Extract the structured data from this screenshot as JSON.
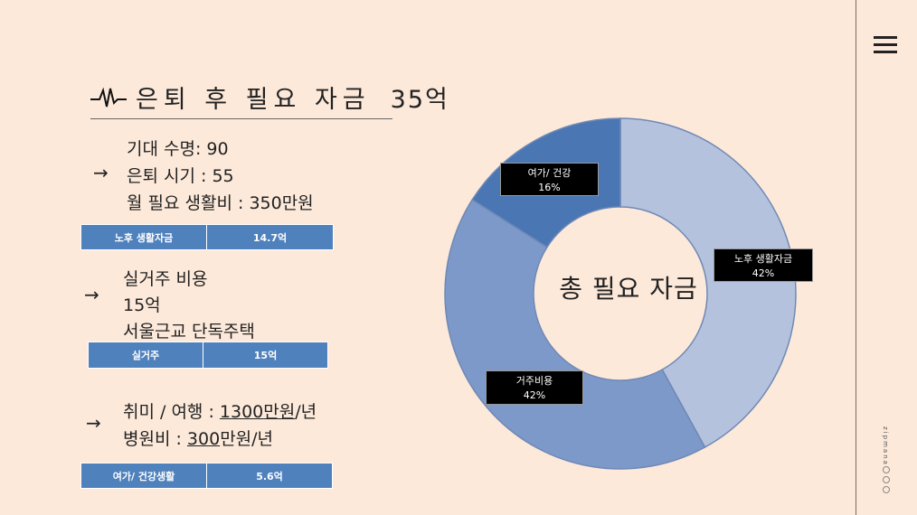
{
  "header": {
    "title": "은퇴 후 필요 자금",
    "amount": "35억"
  },
  "menu_icon": "hamburger-menu-icon",
  "brand": "zipmana",
  "section1": {
    "lines": [
      "기대 수명: 90",
      "은퇴 시기 : 55",
      "월 필요 생활비 : 350만원"
    ],
    "band": {
      "label": "노후 생활자금",
      "value": "14.7억"
    }
  },
  "section2": {
    "lines": [
      "실거주 비용",
      "15억",
      "서울근교 단독주택"
    ],
    "band": {
      "label": "실거주",
      "value": "15억"
    }
  },
  "section3": {
    "line1": {
      "prefix": "취미 / 여행 : ",
      "amount": "1300",
      "mid": "만원",
      "sep": "/",
      "suffix": "년"
    },
    "line2": {
      "prefix": "병원비 : ",
      "amount": "300",
      "suffix": "만원/년"
    },
    "band": {
      "label": "여가/ 건강생활",
      "value": "5.6억"
    }
  },
  "arrow_glyph": "→",
  "chart_data": {
    "type": "pie",
    "subtype": "donut",
    "center_label": "총 필요 자금",
    "slices": [
      {
        "label": "노후 생활자금",
        "pct_label": "42%",
        "value": 42,
        "color": "#b5c2de"
      },
      {
        "label": "거주비용",
        "pct_label": "42%",
        "value": 42,
        "color": "#7d99c9"
      },
      {
        "label": "여가/ 건강",
        "pct_label": "16%",
        "value": 16,
        "color": "#4a77b4"
      }
    ]
  }
}
